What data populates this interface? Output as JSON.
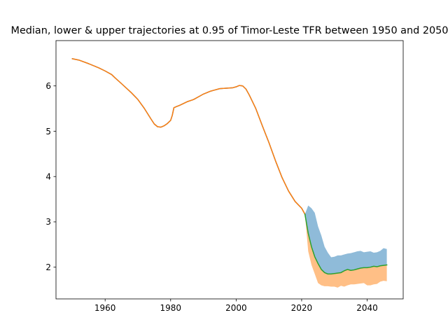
{
  "chart_data": {
    "type": "area",
    "title": "Median, lower & upper trajectories at 0.95 of Timor-Leste TFR between 1950 and 2050",
    "xlabel": "",
    "ylabel": "",
    "xlim": [
      1945,
      2051
    ],
    "ylim": [
      1.3,
      7.0
    ],
    "x_ticks": [
      1960,
      1980,
      2000,
      2020,
      2040
    ],
    "x_tick_labels": [
      "1960",
      "1980",
      "2000",
      "2020",
      "2040"
    ],
    "y_ticks": [
      2,
      3,
      4,
      5,
      6
    ],
    "y_tick_labels": [
      "2",
      "3",
      "4",
      "5",
      "6"
    ],
    "grid": false,
    "legend": "none",
    "series": [
      {
        "kind": "band-upper",
        "color": "#1f77b4",
        "x": [
          2021,
          2022,
          2023,
          2024,
          2025,
          2026,
          2027,
          2028,
          2029,
          2030,
          2031,
          2032,
          2033,
          2034,
          2035,
          2036,
          2037,
          2038,
          2039,
          2040,
          2041,
          2042,
          2043,
          2044,
          2045,
          2046
        ],
        "upper": [
          3.17,
          3.36,
          3.3,
          3.2,
          2.9,
          2.7,
          2.45,
          2.32,
          2.22,
          2.23,
          2.26,
          2.26,
          2.28,
          2.3,
          2.31,
          2.33,
          2.35,
          2.36,
          2.33,
          2.34,
          2.35,
          2.32,
          2.33,
          2.36,
          2.42,
          2.4
        ],
        "lower": [
          3.17,
          2.75,
          2.45,
          2.23,
          2.08,
          1.95,
          1.88,
          1.85,
          1.85,
          1.86,
          1.87,
          1.88,
          1.92,
          1.95,
          1.93,
          1.94,
          1.96,
          1.98,
          1.99,
          1.99,
          2.0,
          2.02,
          2.01,
          2.03,
          2.04,
          2.05
        ]
      },
      {
        "kind": "band-lower",
        "color": "#ff7f0e",
        "x": [
          2021,
          2022,
          2023,
          2024,
          2025,
          2026,
          2027,
          2028,
          2029,
          2030,
          2031,
          2032,
          2033,
          2034,
          2035,
          2036,
          2037,
          2038,
          2039,
          2040,
          2041,
          2042,
          2043,
          2044,
          2045,
          2046
        ],
        "upper": [
          3.17,
          2.75,
          2.45,
          2.23,
          2.08,
          1.95,
          1.88,
          1.85,
          1.85,
          1.86,
          1.87,
          1.88,
          1.92,
          1.95,
          1.93,
          1.94,
          1.96,
          1.98,
          1.99,
          1.99,
          2.0,
          2.02,
          2.01,
          2.03,
          2.04,
          2.05
        ],
        "lower": [
          3.17,
          2.35,
          2.05,
          1.85,
          1.65,
          1.6,
          1.58,
          1.58,
          1.57,
          1.57,
          1.55,
          1.59,
          1.57,
          1.6,
          1.62,
          1.62,
          1.63,
          1.64,
          1.65,
          1.6,
          1.6,
          1.62,
          1.63,
          1.68,
          1.7,
          1.69
        ]
      },
      {
        "kind": "line",
        "color": "#1f77b4",
        "x": [
          1950,
          1952,
          1955,
          1958,
          1960,
          1962,
          1963,
          1965,
          1968,
          1970,
          1972,
          1974,
          1975,
          1976,
          1977,
          1978,
          1979,
          1980,
          1980.5,
          1981,
          1983,
          1985,
          1987,
          1989,
          1990,
          1992,
          1993,
          1995,
          1997,
          1999,
          2000,
          2001,
          2002,
          2003,
          2004,
          2006,
          2008,
          2010,
          2012,
          2014,
          2016,
          2018,
          2020,
          2021
        ],
        "values": [
          6.6,
          6.57,
          6.49,
          6.4,
          6.33,
          6.25,
          6.18,
          6.05,
          5.85,
          5.7,
          5.5,
          5.27,
          5.16,
          5.1,
          5.09,
          5.12,
          5.17,
          5.24,
          5.35,
          5.52,
          5.58,
          5.65,
          5.7,
          5.78,
          5.82,
          5.88,
          5.9,
          5.94,
          5.95,
          5.96,
          5.98,
          6.01,
          6.0,
          5.93,
          5.8,
          5.5,
          5.12,
          4.75,
          4.35,
          3.98,
          3.68,
          3.45,
          3.3,
          3.17
        ]
      },
      {
        "kind": "line",
        "color": "#ff7f0e",
        "x": [
          1950,
          1952,
          1955,
          1958,
          1960,
          1962,
          1963,
          1965,
          1968,
          1970,
          1972,
          1974,
          1975,
          1976,
          1977,
          1978,
          1979,
          1980,
          1980.5,
          1981,
          1983,
          1985,
          1987,
          1989,
          1990,
          1992,
          1993,
          1995,
          1997,
          1999,
          2000,
          2001,
          2002,
          2003,
          2004,
          2006,
          2008,
          2010,
          2012,
          2014,
          2016,
          2018,
          2020,
          2021
        ],
        "values": [
          6.6,
          6.57,
          6.49,
          6.4,
          6.33,
          6.25,
          6.18,
          6.05,
          5.85,
          5.7,
          5.5,
          5.27,
          5.16,
          5.1,
          5.09,
          5.12,
          5.17,
          5.24,
          5.35,
          5.52,
          5.58,
          5.65,
          5.7,
          5.78,
          5.82,
          5.88,
          5.9,
          5.94,
          5.95,
          5.96,
          5.98,
          6.01,
          6.0,
          5.93,
          5.8,
          5.5,
          5.12,
          4.75,
          4.35,
          3.98,
          3.68,
          3.45,
          3.3,
          3.17
        ]
      },
      {
        "kind": "line",
        "color": "#2ca02c",
        "x": [
          2021,
          2022,
          2023,
          2024,
          2025,
          2026,
          2027,
          2028,
          2029,
          2030,
          2031,
          2032,
          2033,
          2034,
          2035,
          2036,
          2037,
          2038,
          2039,
          2040,
          2041,
          2042,
          2043,
          2044,
          2045,
          2046
        ],
        "values": [
          3.17,
          2.75,
          2.45,
          2.23,
          2.08,
          1.95,
          1.88,
          1.85,
          1.85,
          1.86,
          1.87,
          1.88,
          1.92,
          1.95,
          1.93,
          1.94,
          1.96,
          1.98,
          1.99,
          1.99,
          2.0,
          2.02,
          2.01,
          2.03,
          2.04,
          2.05
        ]
      }
    ]
  }
}
